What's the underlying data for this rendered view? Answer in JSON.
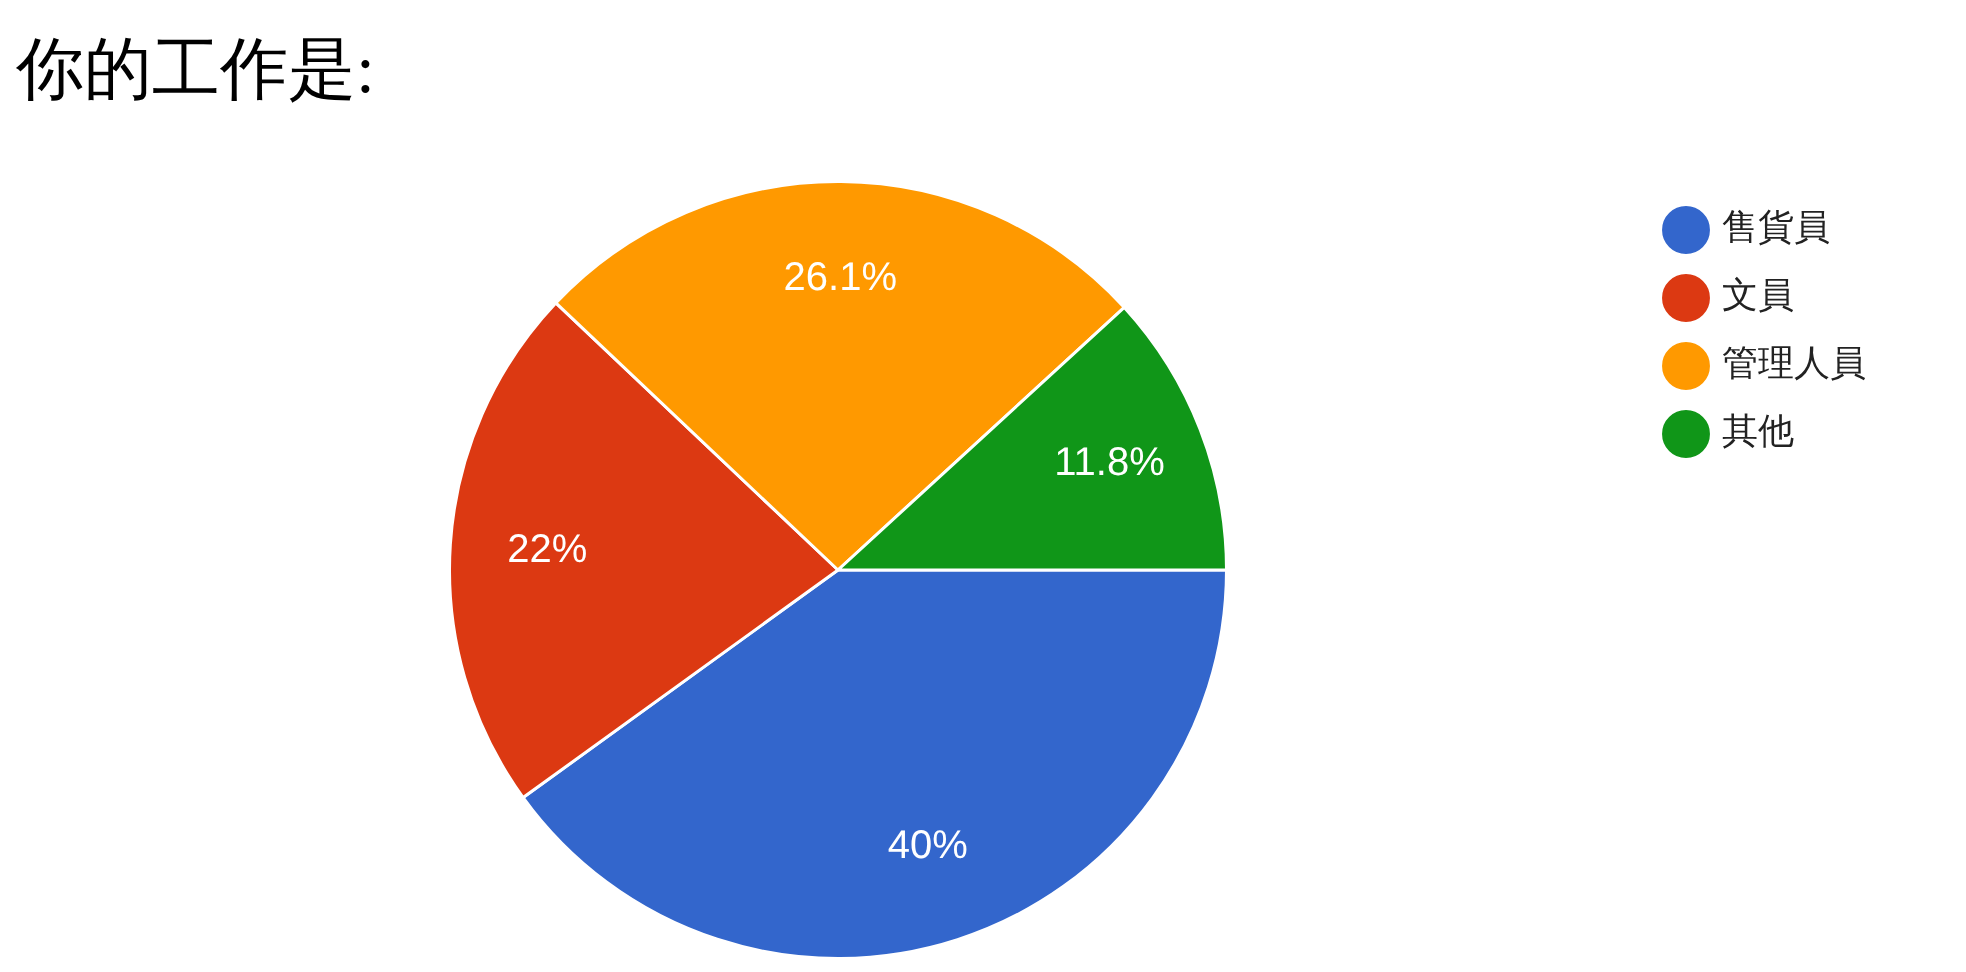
{
  "chart_data": {
    "type": "pie",
    "title": "你的工作是:",
    "categories": [
      "售貨員",
      "文員",
      "管理人員",
      "其他"
    ],
    "values": [
      40,
      22,
      26.1,
      11.8
    ],
    "colors": [
      "#3366cc",
      "#dc3912",
      "#ff9900",
      "#109618"
    ],
    "value_labels": [
      "40%",
      "22%",
      "26.1%",
      "11.8%"
    ],
    "legend": "right"
  }
}
